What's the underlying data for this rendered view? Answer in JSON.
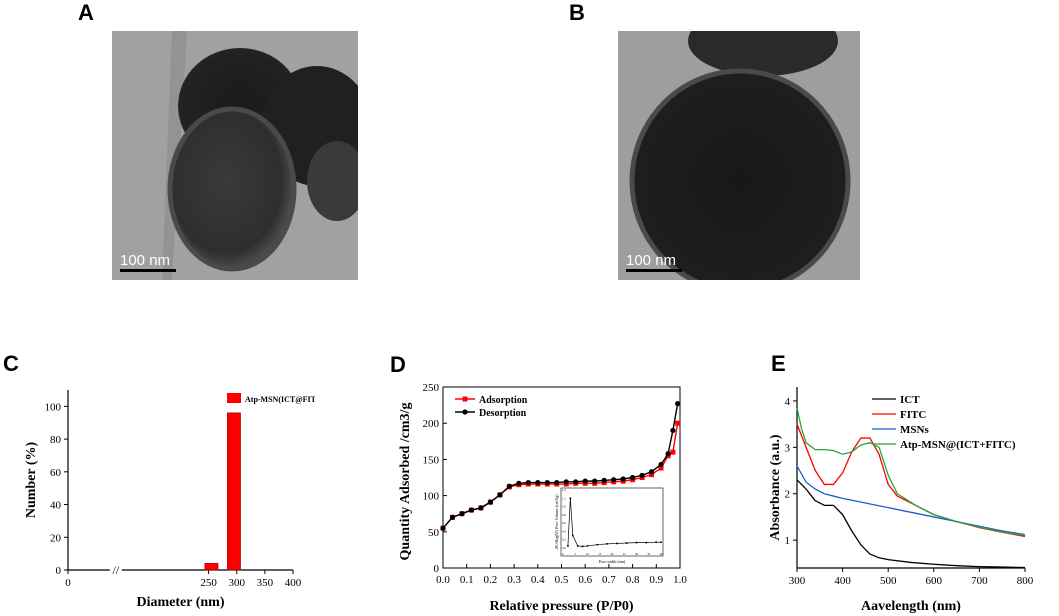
{
  "panels": {
    "a": {
      "letter": "A",
      "scale_bar": "100 nm"
    },
    "b": {
      "letter": "B",
      "scale_bar": "100 nm"
    },
    "c": {
      "letter": "C"
    },
    "d": {
      "letter": "D"
    },
    "e": {
      "letter": "E"
    }
  },
  "chart_data": [
    {
      "type": "bar",
      "xlabel": "Diameter (nm)",
      "ylabel": "Number (%)",
      "xlim": [
        0,
        400
      ],
      "ylim": [
        0,
        110
      ],
      "x_ticks": [
        "0",
        "250",
        "300",
        "350",
        "400"
      ],
      "y_ticks": [
        "0",
        "20",
        "40",
        "60",
        "80",
        "100"
      ],
      "axis_break": "//",
      "legend": [
        "Atp-MSN(ICT@FITC)"
      ],
      "series": [
        {
          "name": "Atp-MSN(ICT@FITC)",
          "color": "#ff0000",
          "x": [
            255,
            295
          ],
          "values": [
            4,
            96
          ]
        }
      ]
    },
    {
      "type": "line",
      "xlabel": "Relative pressure (P/P0)",
      "ylabel": "Quantity Adsorbed /cm3/g",
      "xlim": [
        0.0,
        1.0
      ],
      "ylim": [
        0,
        250
      ],
      "x_ticks": [
        "0.0",
        "0.1",
        "0.2",
        "0.3",
        "0.4",
        "0.5",
        "0.6",
        "0.7",
        "0.8",
        "0.9",
        "1.0"
      ],
      "y_ticks": [
        "0",
        "50",
        "100",
        "150",
        "200",
        "250"
      ],
      "legend_position": "top-left",
      "series": [
        {
          "name": "Adsorption",
          "color": "#ff0000",
          "marker": "square",
          "x": [
            0.0,
            0.04,
            0.08,
            0.12,
            0.16,
            0.2,
            0.24,
            0.28,
            0.32,
            0.36,
            0.4,
            0.44,
            0.48,
            0.52,
            0.56,
            0.6,
            0.64,
            0.68,
            0.72,
            0.76,
            0.8,
            0.84,
            0.88,
            0.92,
            0.95,
            0.97,
            0.99
          ],
          "y": [
            55,
            70,
            75,
            80,
            83,
            91,
            101,
            112,
            115,
            116,
            116,
            116,
            116,
            116,
            117,
            117,
            117,
            118,
            119,
            120,
            122,
            125,
            129,
            138,
            155,
            160,
            200
          ]
        },
        {
          "name": "Desorption",
          "color": "#000000",
          "marker": "circle",
          "x": [
            0.99,
            0.97,
            0.95,
            0.92,
            0.88,
            0.84,
            0.8,
            0.76,
            0.72,
            0.68,
            0.64,
            0.6,
            0.56,
            0.52,
            0.48,
            0.44,
            0.4,
            0.36,
            0.32,
            0.28,
            0.24,
            0.2,
            0.16,
            0.12,
            0.08,
            0.04,
            0.0
          ],
          "y": [
            227,
            190,
            158,
            143,
            133,
            128,
            125,
            123,
            122,
            121,
            120,
            120,
            119,
            119,
            118,
            118,
            118,
            118,
            117,
            113,
            101,
            91,
            83,
            80,
            75,
            70,
            55
          ]
        }
      ],
      "inset": {
        "type": "line",
        "xlabel": "Pore width (nm)",
        "ylabel": "dV/dlog(W) Pore Volume (cm3/g)",
        "x_ticks": [
          "0",
          "5",
          "10",
          "15",
          "20",
          "25",
          "30",
          "35",
          "40"
        ],
        "y_ticks": [
          "0.0",
          "0.2",
          "0.4",
          "0.6",
          "0.8",
          "1.0",
          "1.2",
          "1.4"
        ],
        "x": [
          2,
          3,
          4,
          6,
          8,
          10,
          14,
          18,
          22,
          26,
          30,
          34,
          38,
          40
        ],
        "y": [
          0.05,
          1.2,
          0.3,
          0.05,
          0.04,
          0.05,
          0.08,
          0.1,
          0.11,
          0.12,
          0.13,
          0.13,
          0.14,
          0.14
        ]
      }
    },
    {
      "type": "line",
      "xlabel": "Aavelength (nm)",
      "ylabel": "Absorbance (a.u.)",
      "xlim": [
        300,
        800
      ],
      "ylim": [
        0.4,
        4.3
      ],
      "x_ticks": [
        "300",
        "400",
        "500",
        "600",
        "700",
        "800"
      ],
      "y_ticks": [
        "1",
        "2",
        "3",
        "4"
      ],
      "legend_position": "top-right",
      "series": [
        {
          "name": "ICT",
          "color": "#000000",
          "x": [
            300,
            320,
            340,
            360,
            380,
            400,
            420,
            440,
            460,
            480,
            500,
            550,
            600,
            650,
            700,
            750,
            800
          ],
          "y": [
            2.3,
            2.1,
            1.85,
            1.75,
            1.75,
            1.55,
            1.2,
            0.9,
            0.7,
            0.62,
            0.58,
            0.52,
            0.48,
            0.45,
            0.43,
            0.42,
            0.41
          ]
        },
        {
          "name": "FITC",
          "color": "#ff0000",
          "x": [
            300,
            320,
            340,
            360,
            380,
            400,
            420,
            440,
            460,
            480,
            500,
            520,
            560,
            600,
            650,
            700,
            750,
            800
          ],
          "y": [
            3.5,
            3.0,
            2.5,
            2.2,
            2.2,
            2.45,
            2.9,
            3.2,
            3.2,
            2.85,
            2.2,
            1.95,
            1.75,
            1.55,
            1.4,
            1.27,
            1.17,
            1.08
          ]
        },
        {
          "name": "MSNs",
          "color": "#1a5fd6",
          "x": [
            300,
            320,
            340,
            360,
            380,
            400,
            450,
            500,
            550,
            600,
            650,
            700,
            750,
            800
          ],
          "y": [
            2.6,
            2.25,
            2.1,
            2.0,
            1.95,
            1.9,
            1.8,
            1.7,
            1.6,
            1.5,
            1.4,
            1.3,
            1.2,
            1.12
          ]
        },
        {
          "name": "Atp-MSN@(ICT+FITC)",
          "color": "#2aa340",
          "x": [
            300,
            310,
            320,
            340,
            360,
            380,
            400,
            420,
            440,
            460,
            480,
            500,
            520,
            560,
            600,
            650,
            700,
            750,
            800
          ],
          "y": [
            3.85,
            3.4,
            3.1,
            2.95,
            2.95,
            2.93,
            2.85,
            2.9,
            3.05,
            3.1,
            3.0,
            2.4,
            2.0,
            1.75,
            1.55,
            1.4,
            1.28,
            1.18,
            1.1
          ]
        }
      ]
    }
  ]
}
